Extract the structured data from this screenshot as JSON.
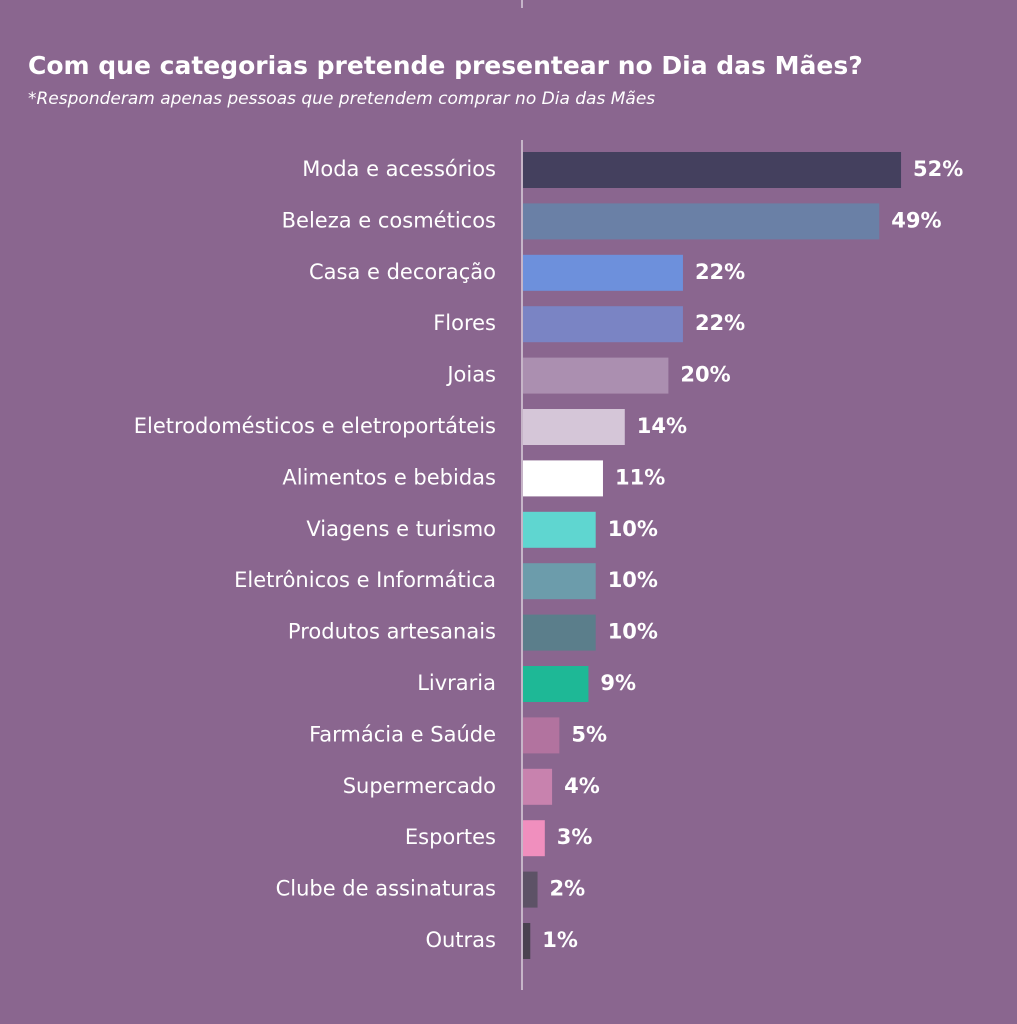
{
  "chart_data": {
    "type": "hbar",
    "title": "Com que categorias pretende presentear no Dia das Mães?",
    "subtitle": "*Responderam apenas pessoas que pretendem comprar no Dia das Mães",
    "categories": [
      "Moda e acessórios",
      "Beleza e cosméticos",
      "Casa e decoração",
      "Flores",
      "Joias",
      "Eletrodomésticos e eletroportáteis",
      "Alimentos e bebidas",
      "Viagens e turismo",
      "Eletrônicos e Informática",
      "Produtos artesanais",
      "Livraria",
      "Farmácia e Saúde",
      "Supermercado",
      "Esportes",
      "Clube de assinaturas",
      "Outras"
    ],
    "values": [
      52,
      49,
      22,
      22,
      20,
      14,
      11,
      10,
      10,
      10,
      9,
      5,
      4,
      3,
      2,
      1
    ],
    "value_labels": [
      "52%",
      "49%",
      "22%",
      "22%",
      "20%",
      "14%",
      "11%",
      "10%",
      "10%",
      "10%",
      "9%",
      "5%",
      "4%",
      "3%",
      "2%",
      "1%"
    ],
    "colors": [
      "#44405e",
      "#6a80a6",
      "#6d90dc",
      "#7a84c4",
      "#ab8fb0",
      "#d5c6d8",
      "#ffffff",
      "#5fd6d0",
      "#6c9cab",
      "#5b7e8b",
      "#1eb896",
      "#b2739f",
      "#c882ae",
      "#f08fbe",
      "#5d5266",
      "#4a4250"
    ]
  }
}
